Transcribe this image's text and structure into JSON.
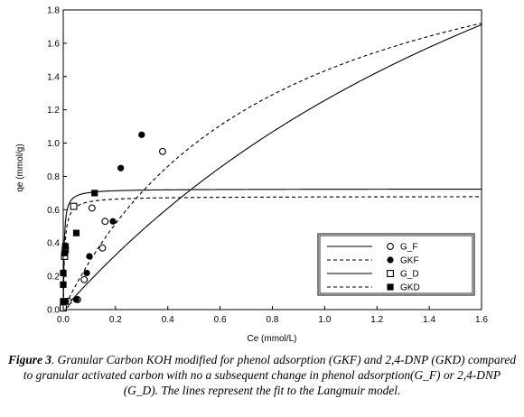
{
  "chart_data": {
    "type": "scatter",
    "xlabel": "Ce (mmol/L)",
    "ylabel": "qe (mmol/g)",
    "xlim": [
      0,
      1.6
    ],
    "ylim": [
      0,
      1.8
    ],
    "xticks": [
      "0.0",
      "0.2",
      "0.4",
      "0.6",
      "0.8",
      "1.0",
      "1.2",
      "1.4",
      "1.6"
    ],
    "yticks": [
      "0.0",
      "0.2",
      "0.4",
      "0.6",
      "0.8",
      "1.0",
      "1.2",
      "1.4",
      "1.6",
      "1.8"
    ],
    "legend_position": "right",
    "series": [
      {
        "name": "G_F",
        "marker": "open-circle",
        "line": "solid",
        "points": [
          [
            0.01,
            0.03
          ],
          [
            0.02,
            0.05
          ],
          [
            0.055,
            0.06
          ],
          [
            0.08,
            0.18
          ],
          [
            0.11,
            0.61
          ],
          [
            0.15,
            0.37
          ],
          [
            0.16,
            0.53
          ],
          [
            0.38,
            0.95
          ]
        ],
        "fit": {
          "qm": 4.32,
          "b": 0.41
        }
      },
      {
        "name": "GKF",
        "marker": "filled-circle",
        "line": "dashed",
        "points": [
          [
            0.01,
            0.05
          ],
          [
            0.05,
            0.06
          ],
          [
            0.09,
            0.22
          ],
          [
            0.1,
            0.32
          ],
          [
            0.19,
            0.53
          ],
          [
            0.22,
            0.85
          ],
          [
            0.3,
            1.05
          ]
        ],
        "fit": {
          "qm": 2.58,
          "b": 1.25
        }
      },
      {
        "name": "G_D",
        "marker": "open-square",
        "line": "solid",
        "points": [
          [
            0.0,
            0.01
          ],
          [
            0.005,
            0.32
          ],
          [
            0.008,
            0.36
          ],
          [
            0.04,
            0.62
          ]
        ],
        "fit": {
          "qm": 0.725,
          "b": 320
        }
      },
      {
        "name": "GKD",
        "marker": "filled-square",
        "line": "dashed",
        "points": [
          [
            0.0,
            0.05
          ],
          [
            0.0,
            0.15
          ],
          [
            0.0,
            0.22
          ],
          [
            0.005,
            0.34
          ],
          [
            0.008,
            0.38
          ],
          [
            0.05,
            0.46
          ],
          [
            0.12,
            0.7
          ]
        ],
        "fit": {
          "qm": 0.68,
          "b": 200
        }
      }
    ]
  },
  "caption": {
    "label": "Figure 3",
    "text": ". Granular Carbon KOH modified for phenol adsorption (GKF) and 2,4-DNP (GKD) compared to granular activated carbon with no a subsequent change in phenol adsorption(G_F) or 2,4-DNP (G_D). The lines represent the fit to the Langmuir model."
  }
}
